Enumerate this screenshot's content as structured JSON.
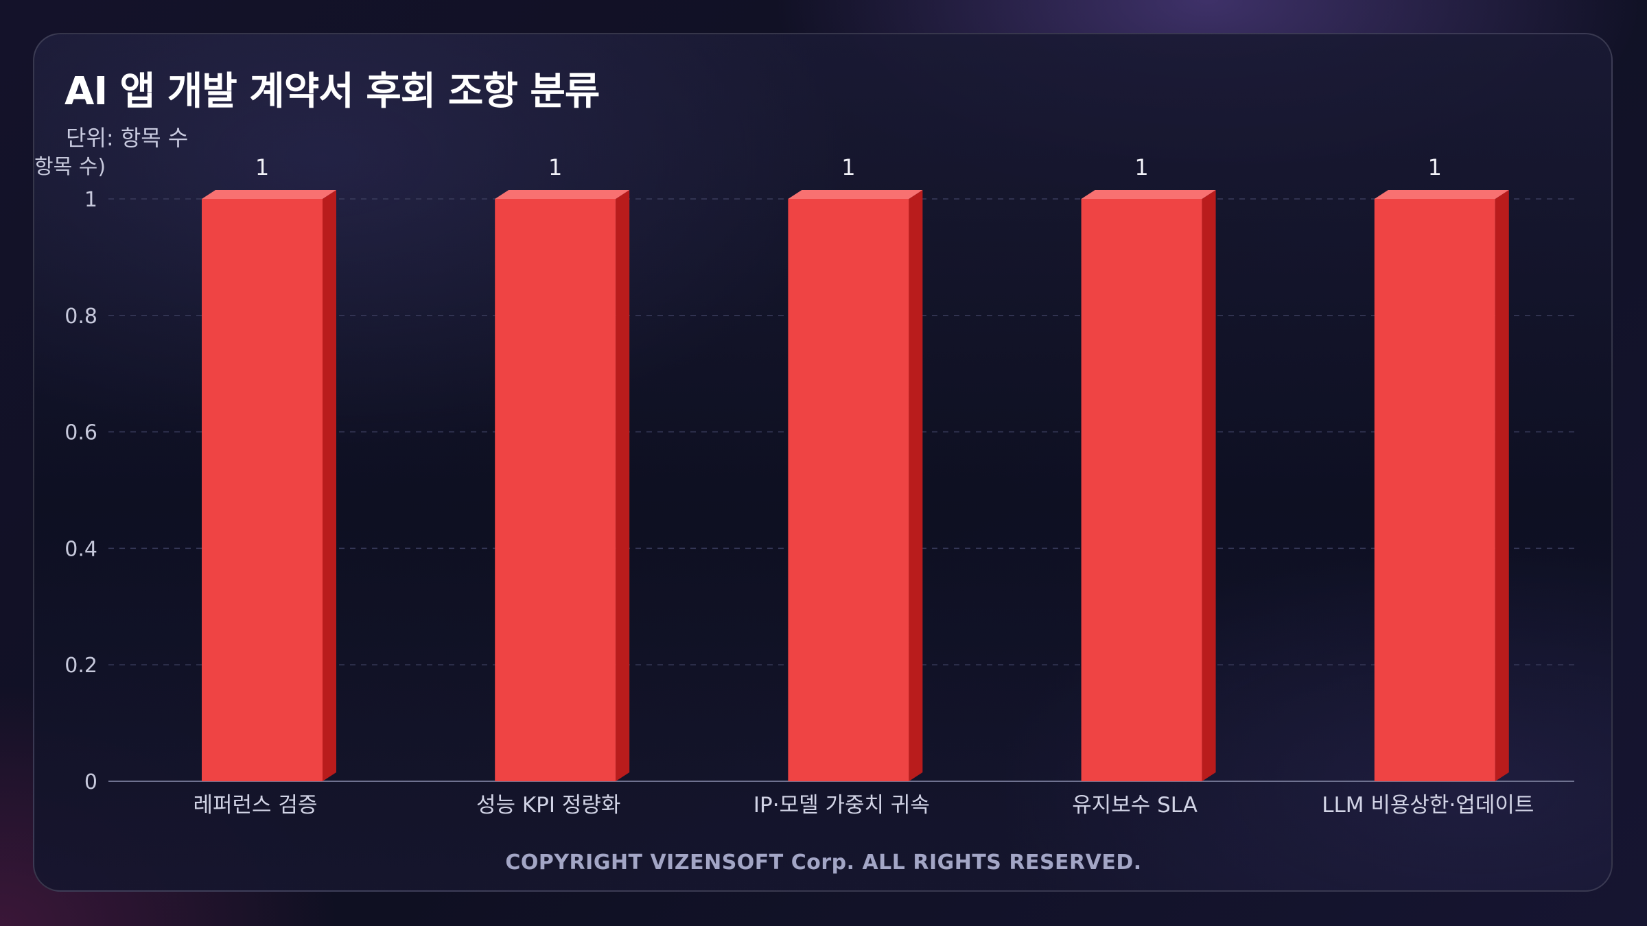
{
  "header": {
    "title": "AI 앱 개발 계약서 후회 조항 분류",
    "subtitle": "단위: 항목 수"
  },
  "footer": {
    "copyright": "COPYRIGHT VIZENSOFT Corp. ALL RIGHTS RESERVED."
  },
  "colors": {
    "bar_front": "#ef4444",
    "bar_top": "#f87171",
    "bar_side": "#b91c1c",
    "grid": "#3a3c5c",
    "axis": "#6f7290"
  },
  "chart_data": {
    "type": "bar",
    "title": "AI 앱 개발 계약서 후회 조항 분류",
    "subtitle": "단위: 항목 수",
    "xlabel": "",
    "ylabel": "항목 수)",
    "categories": [
      "레퍼런스 검증",
      "성능 KPI 정량화",
      "IP·모델 가중치 귀속",
      "유지보수 SLA",
      "LLM 비용상한·업데이트"
    ],
    "values": [
      1,
      1,
      1,
      1,
      1
    ],
    "data_labels": [
      "1",
      "1",
      "1",
      "1",
      "1"
    ],
    "ylim": [
      0,
      1
    ],
    "yticks": [
      0,
      0.2,
      0.4,
      0.6,
      0.8,
      1
    ],
    "ytick_labels": [
      "0",
      "0.2",
      "0.4",
      "0.6",
      "0.8",
      "1"
    ],
    "grid": true,
    "legend": "none",
    "style": "3d-bar"
  }
}
